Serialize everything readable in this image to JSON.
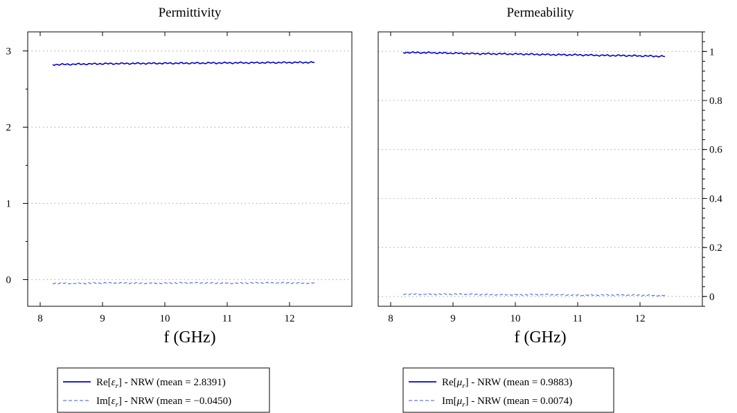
{
  "chart_data": [
    {
      "type": "line",
      "title": "Permittivity",
      "xlabel": "f (GHz)",
      "ylabel": "",
      "xlim": [
        7.8,
        13.0
      ],
      "ylim": [
        -0.35,
        3.25
      ],
      "xticks": [
        8,
        9,
        10,
        11,
        12
      ],
      "yticks": [
        0,
        1,
        2,
        3
      ],
      "y_axis_side": "left",
      "grid": "horizontal dotted",
      "legend_position": "below",
      "series": [
        {
          "name": "Re[ε_r] - NRW (mean = 2.8391)",
          "label_main": "Re[",
          "label_sym": "ε",
          "label_sub": "r",
          "label_rest": "] - NRW (mean = 2.8391)",
          "style": "solid",
          "color": "#0000cc",
          "x": [
            8.2,
            8.6,
            9.0,
            9.4,
            9.8,
            10.2,
            10.6,
            11.0,
            11.4,
            11.8,
            12.2,
            12.4
          ],
          "y": [
            2.82,
            2.827,
            2.832,
            2.835,
            2.837,
            2.839,
            2.841,
            2.843,
            2.845,
            2.847,
            2.849,
            2.85
          ]
        },
        {
          "name": "Im[ε_r] - NRW (mean = −0.0450)",
          "label_main": "Im[",
          "label_sym": "ε",
          "label_sub": "r",
          "label_rest": "] - NRW (mean = −0.0450)",
          "style": "dashed",
          "color": "#3355ee",
          "x": [
            8.2,
            8.6,
            9.0,
            9.4,
            9.8,
            10.2,
            10.6,
            11.0,
            11.4,
            11.8,
            12.2,
            12.4
          ],
          "y": [
            -0.048,
            -0.047,
            -0.046,
            -0.046,
            -0.045,
            -0.045,
            -0.045,
            -0.044,
            -0.044,
            -0.044,
            -0.044,
            -0.044
          ]
        }
      ]
    },
    {
      "type": "line",
      "title": "Permeability",
      "xlabel": "f (GHz)",
      "ylabel": "",
      "xlim": [
        7.8,
        13.0
      ],
      "ylim": [
        -0.04,
        1.08
      ],
      "xticks": [
        8,
        9,
        10,
        11,
        12
      ],
      "yticks": [
        0,
        0.2,
        0.4,
        0.6,
        0.8,
        1
      ],
      "y_minor_step": 0.04,
      "y_axis_side": "right",
      "grid": "horizontal dotted",
      "legend_position": "below",
      "series": [
        {
          "name": "Re[μ_r] - NRW (mean = 0.9883)",
          "label_main": "Re[",
          "label_sym": "μ",
          "label_sub": "r",
          "label_rest": "] - NRW (mean = 0.9883)",
          "style": "solid",
          "color": "#0000cc",
          "x": [
            8.2,
            8.6,
            9.0,
            9.4,
            9.8,
            10.2,
            10.6,
            11.0,
            11.4,
            11.8,
            12.2,
            12.4
          ],
          "y": [
            0.996,
            0.995,
            0.993,
            0.991,
            0.99,
            0.989,
            0.987,
            0.986,
            0.984,
            0.983,
            0.981,
            0.98
          ]
        },
        {
          "name": "Im[μ_r] - NRW (mean = 0.0074)",
          "label_main": "Im[",
          "label_sym": "μ",
          "label_sub": "r",
          "label_rest": "] - NRW (mean = 0.0074)",
          "style": "dashed",
          "color": "#3355ee",
          "x": [
            8.2,
            8.6,
            9.0,
            9.4,
            9.8,
            10.2,
            10.6,
            11.0,
            11.4,
            11.8,
            12.2,
            12.4
          ],
          "y": [
            0.01,
            0.01,
            0.009,
            0.008,
            0.008,
            0.007,
            0.007,
            0.006,
            0.006,
            0.005,
            0.005,
            0.004
          ]
        }
      ]
    }
  ]
}
